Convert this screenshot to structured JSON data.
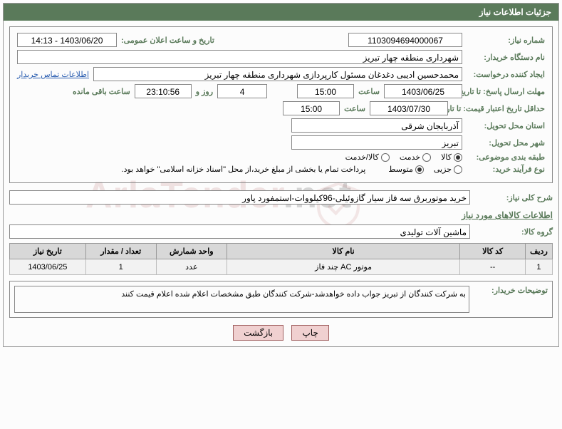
{
  "header": {
    "title": "جزئیات اطلاعات نیاز"
  },
  "fields": {
    "need_number_label": "شماره نیاز:",
    "need_number": "1103094694000067",
    "announce_label": "تاریخ و ساعت اعلان عمومی:",
    "announce_value": "1403/06/20 - 14:13",
    "buyer_org_label": "نام دستگاه خریدار:",
    "buyer_org": "شهرداری منطقه چهار تبریز",
    "requester_label": "ایجاد کننده درخواست:",
    "requester": "محمدحسین ادیبی دغدغان مسئول کارپردازی شهرداری منطقه چهار تبریز",
    "contact_link": "اطلاعات تماس خریدار",
    "deadline_label": "مهلت ارسال پاسخ: تا تاریخ:",
    "deadline_date": "1403/06/25",
    "hour_label": "ساعت",
    "deadline_time": "15:00",
    "days_remaining": "4",
    "days_label": "روز و",
    "time_remaining": "23:10:56",
    "remaining_label": "ساعت باقی مانده",
    "validity_label": "حداقل تاریخ اعتبار قیمت: تا تاریخ:",
    "validity_date": "1403/07/30",
    "validity_time": "15:00",
    "province_label": "استان محل تحویل:",
    "province": "آذربایجان شرقی",
    "city_label": "شهر محل تحویل:",
    "city": "تبریز",
    "category_label": "طبقه بندی موضوعی:",
    "process_label": "نوع فرآیند خرید:",
    "payment_note": "پرداخت تمام یا بخشی از مبلغ خرید،از محل \"اسناد خزانه اسلامی\" خواهد بود."
  },
  "category_options": [
    {
      "label": "کالا",
      "checked": true
    },
    {
      "label": "خدمت",
      "checked": false
    },
    {
      "label": "کالا/خدمت",
      "checked": false
    }
  ],
  "process_options": [
    {
      "label": "جزیی",
      "checked": false
    },
    {
      "label": "متوسط",
      "checked": true
    }
  ],
  "overview": {
    "title_label": "شرح کلی نیاز:",
    "title_value": "خرید موتوربرق سه فاز سیار گازوئیلی-96کیلووات-استمفورد پاور",
    "goods_section": "اطلاعات کالاهای مورد نیاز",
    "group_label": "گروه کالا:",
    "group_value": "ماشین آلات تولیدی"
  },
  "table": {
    "headers": [
      "ردیف",
      "کد کالا",
      "نام کالا",
      "واحد شمارش",
      "تعداد / مقدار",
      "تاریخ نیاز"
    ],
    "rows": [
      [
        "1",
        "--",
        "موتور AC چند فاز",
        "عدد",
        "1",
        "1403/06/25"
      ]
    ]
  },
  "description": {
    "label": "توضیحات خریدار:",
    "text": "به شرکت کنندگان از تبریز جواب داده خواهدشد-شرکت کنندگان طبق مشخصات اعلام شده اعلام قیمت کنند"
  },
  "buttons": {
    "print": "چاپ",
    "back": "بازگشت"
  },
  "colors": {
    "header_bg": "#5a7a5a",
    "label_color": "#5a7a5a",
    "border": "#888888",
    "th_bg": "#d8d8d8",
    "td_bg": "#f2f2f2",
    "btn_bg": "#f0d0d0",
    "btn_border": "#a06060",
    "link": "#2a5db0"
  }
}
